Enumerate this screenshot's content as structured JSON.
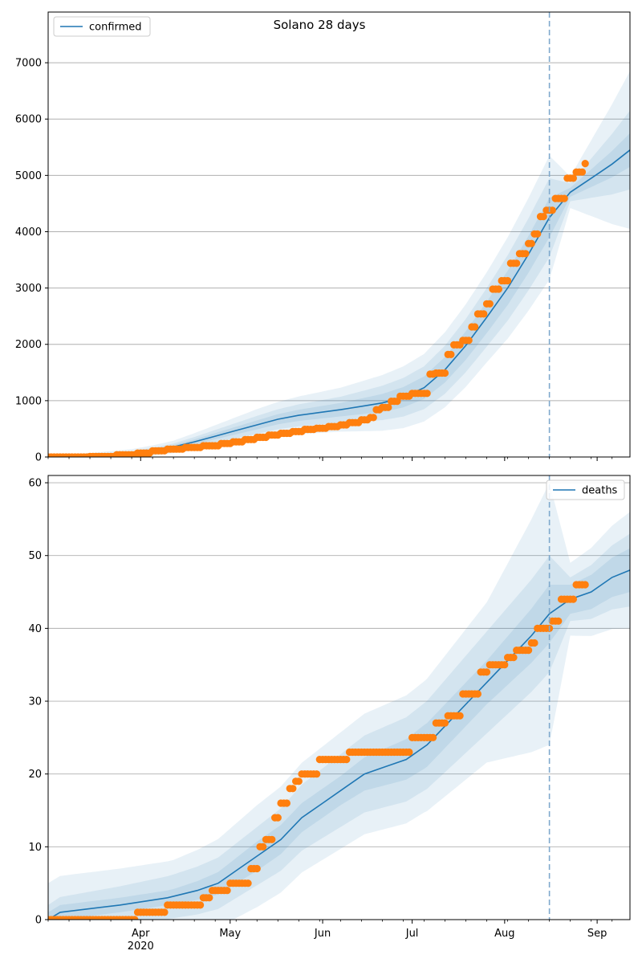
{
  "chart_data": [
    {
      "type": "line",
      "title": "Solano 28 days",
      "xlabel": "",
      "ylabel": "",
      "x_range": [
        "2020-03-01",
        "2020-09-12"
      ],
      "ylim": [
        0,
        7900
      ],
      "yticks": [
        0,
        1000,
        2000,
        3000,
        4000,
        5000,
        6000,
        7000
      ],
      "grid": "horizontal",
      "legend_position": "top-left",
      "forecast_start": "2020-08-16",
      "colors": {
        "line": "#1f77b4",
        "observed": "#ff7f0e",
        "band": "#1f77b4",
        "marker_line": "#7fa9cd"
      },
      "series": [
        {
          "name": "confirmed",
          "kind": "model-fit",
          "x": [
            "2020-03-01",
            "2020-03-15",
            "2020-03-29",
            "2020-04-05",
            "2020-04-12",
            "2020-04-19",
            "2020-04-26",
            "2020-05-03",
            "2020-05-10",
            "2020-05-17",
            "2020-05-24",
            "2020-05-31",
            "2020-06-07",
            "2020-06-14",
            "2020-06-21",
            "2020-06-28",
            "2020-07-05",
            "2020-07-12",
            "2020-07-19",
            "2020-07-26",
            "2020-08-02",
            "2020-08-09",
            "2020-08-16",
            "2020-08-23",
            "2020-08-30",
            "2020-09-06",
            "2020-09-12"
          ],
          "values": [
            0,
            20,
            60,
            110,
            180,
            270,
            370,
            470,
            570,
            670,
            740,
            790,
            840,
            900,
            960,
            1060,
            1230,
            1550,
            1980,
            2480,
            3000,
            3600,
            4250,
            4700,
            4950,
            5200,
            5450
          ]
        },
        {
          "name": "",
          "kind": "observed",
          "x": [
            "2020-03-01",
            "2020-03-15",
            "2020-03-24",
            "2020-03-31",
            "2020-04-05",
            "2020-04-10",
            "2020-04-16",
            "2020-04-22",
            "2020-04-28",
            "2020-05-02",
            "2020-05-06",
            "2020-05-10",
            "2020-05-14",
            "2020-05-18",
            "2020-05-22",
            "2020-05-26",
            "2020-05-30",
            "2020-06-03",
            "2020-06-07",
            "2020-06-10",
            "2020-06-14",
            "2020-06-17",
            "2020-06-19",
            "2020-06-21",
            "2020-06-24",
            "2020-06-27",
            "2020-07-01",
            "2020-07-04",
            "2020-07-07",
            "2020-07-09",
            "2020-07-11",
            "2020-07-13",
            "2020-07-15",
            "2020-07-18",
            "2020-07-21",
            "2020-07-23",
            "2020-07-26",
            "2020-07-28",
            "2020-07-31",
            "2020-08-03",
            "2020-08-06",
            "2020-08-09",
            "2020-08-11",
            "2020-08-13",
            "2020-08-15",
            "2020-08-18",
            "2020-08-20",
            "2020-08-22",
            "2020-08-25",
            "2020-08-28"
          ],
          "values": [
            0,
            10,
            40,
            70,
            110,
            140,
            170,
            200,
            240,
            270,
            310,
            350,
            390,
            420,
            450,
            490,
            510,
            540,
            570,
            610,
            660,
            700,
            840,
            880,
            990,
            1080,
            1130,
            1130,
            1470,
            1490,
            1490,
            1820,
            1990,
            2070,
            2310,
            2540,
            2720,
            2980,
            3130,
            3440,
            3610,
            3790,
            3960,
            4270,
            4380,
            4590,
            4590,
            4950,
            5060,
            5210
          ]
        }
      ],
      "band_halfwidths": {
        "x": [
          "2020-03-01",
          "2020-04-12",
          "2020-05-10",
          "2020-06-07",
          "2020-07-05",
          "2020-07-26",
          "2020-08-16",
          "2020-08-23",
          "2020-09-12"
        ],
        "inner": [
          5,
          30,
          80,
          120,
          200,
          280,
          350,
          80,
          300
        ],
        "middle": [
          10,
          60,
          160,
          230,
          380,
          520,
          700,
          160,
          700
        ],
        "outer": [
          20,
          110,
          280,
          390,
          600,
          800,
          1100,
          280,
          1400
        ]
      }
    },
    {
      "type": "line",
      "title": "",
      "xlabel": "",
      "ylabel": "",
      "x_range": [
        "2020-03-01",
        "2020-09-12"
      ],
      "ylim": [
        0,
        61
      ],
      "yticks": [
        0,
        10,
        20,
        30,
        40,
        50,
        60
      ],
      "xticks": [
        "Apr",
        "May",
        "Jun",
        "Jul",
        "Aug",
        "Sep"
      ],
      "xtick_dates": [
        "2020-04-01",
        "2020-05-01",
        "2020-06-01",
        "2020-07-01",
        "2020-08-01",
        "2020-09-01"
      ],
      "year_label": "2020",
      "grid": "horizontal",
      "legend_position": "top-right",
      "forecast_start": "2020-08-16",
      "colors": {
        "line": "#1f77b4",
        "observed": "#ff7f0e",
        "band": "#1f77b4",
        "marker_line": "#7fa9cd"
      },
      "series": [
        {
          "name": "deaths",
          "kind": "model-fit",
          "x": [
            "2020-03-01",
            "2020-03-05",
            "2020-03-25",
            "2020-04-10",
            "2020-04-20",
            "2020-04-27",
            "2020-05-04",
            "2020-05-11",
            "2020-05-18",
            "2020-05-25",
            "2020-06-01",
            "2020-06-08",
            "2020-06-15",
            "2020-06-22",
            "2020-06-29",
            "2020-07-06",
            "2020-07-13",
            "2020-07-20",
            "2020-07-27",
            "2020-08-03",
            "2020-08-10",
            "2020-08-16",
            "2020-08-23",
            "2020-08-30",
            "2020-09-06",
            "2020-09-12"
          ],
          "values": [
            0,
            1,
            2,
            3,
            4,
            5,
            7,
            9,
            11,
            14,
            16,
            18,
            20,
            21,
            22,
            24,
            27,
            30,
            33,
            36,
            39,
            42,
            44,
            45,
            47,
            48
          ]
        },
        {
          "name": "",
          "kind": "observed",
          "x": [
            "2020-03-01",
            "2020-03-31",
            "2020-04-10",
            "2020-04-22",
            "2020-04-25",
            "2020-04-27",
            "2020-05-01",
            "2020-05-08",
            "2020-05-11",
            "2020-05-13",
            "2020-05-16",
            "2020-05-18",
            "2020-05-21",
            "2020-05-23",
            "2020-05-25",
            "2020-05-27",
            "2020-05-31",
            "2020-06-10",
            "2020-06-15",
            "2020-06-24",
            "2020-07-01",
            "2020-07-05",
            "2020-07-09",
            "2020-07-13",
            "2020-07-18",
            "2020-07-21",
            "2020-07-24",
            "2020-07-27",
            "2020-07-30",
            "2020-08-02",
            "2020-08-05",
            "2020-08-08",
            "2020-08-10",
            "2020-08-12",
            "2020-08-17",
            "2020-08-20",
            "2020-08-25",
            "2020-08-28"
          ],
          "values": [
            0,
            1,
            2,
            3,
            4,
            4,
            5,
            7,
            10,
            11,
            14,
            16,
            18,
            19,
            20,
            20,
            22,
            23,
            23,
            23,
            25,
            25,
            27,
            28,
            31,
            31,
            34,
            35,
            35,
            36,
            37,
            37,
            38,
            40,
            41,
            44,
            46,
            46
          ]
        }
      ],
      "band_halfwidths": {
        "x": [
          "2020-03-01",
          "2020-04-12",
          "2020-05-10",
          "2020-06-07",
          "2020-07-05",
          "2020-07-26",
          "2020-08-16",
          "2020-08-23",
          "2020-09-12"
        ],
        "inner": [
          1,
          1,
          2,
          2,
          3,
          3,
          4,
          2,
          3
        ],
        "middle": [
          2,
          3,
          4,
          5,
          6,
          7,
          8,
          3,
          5
        ],
        "outer": [
          5,
          5,
          7,
          8,
          9,
          11,
          18,
          5,
          8
        ]
      }
    }
  ]
}
